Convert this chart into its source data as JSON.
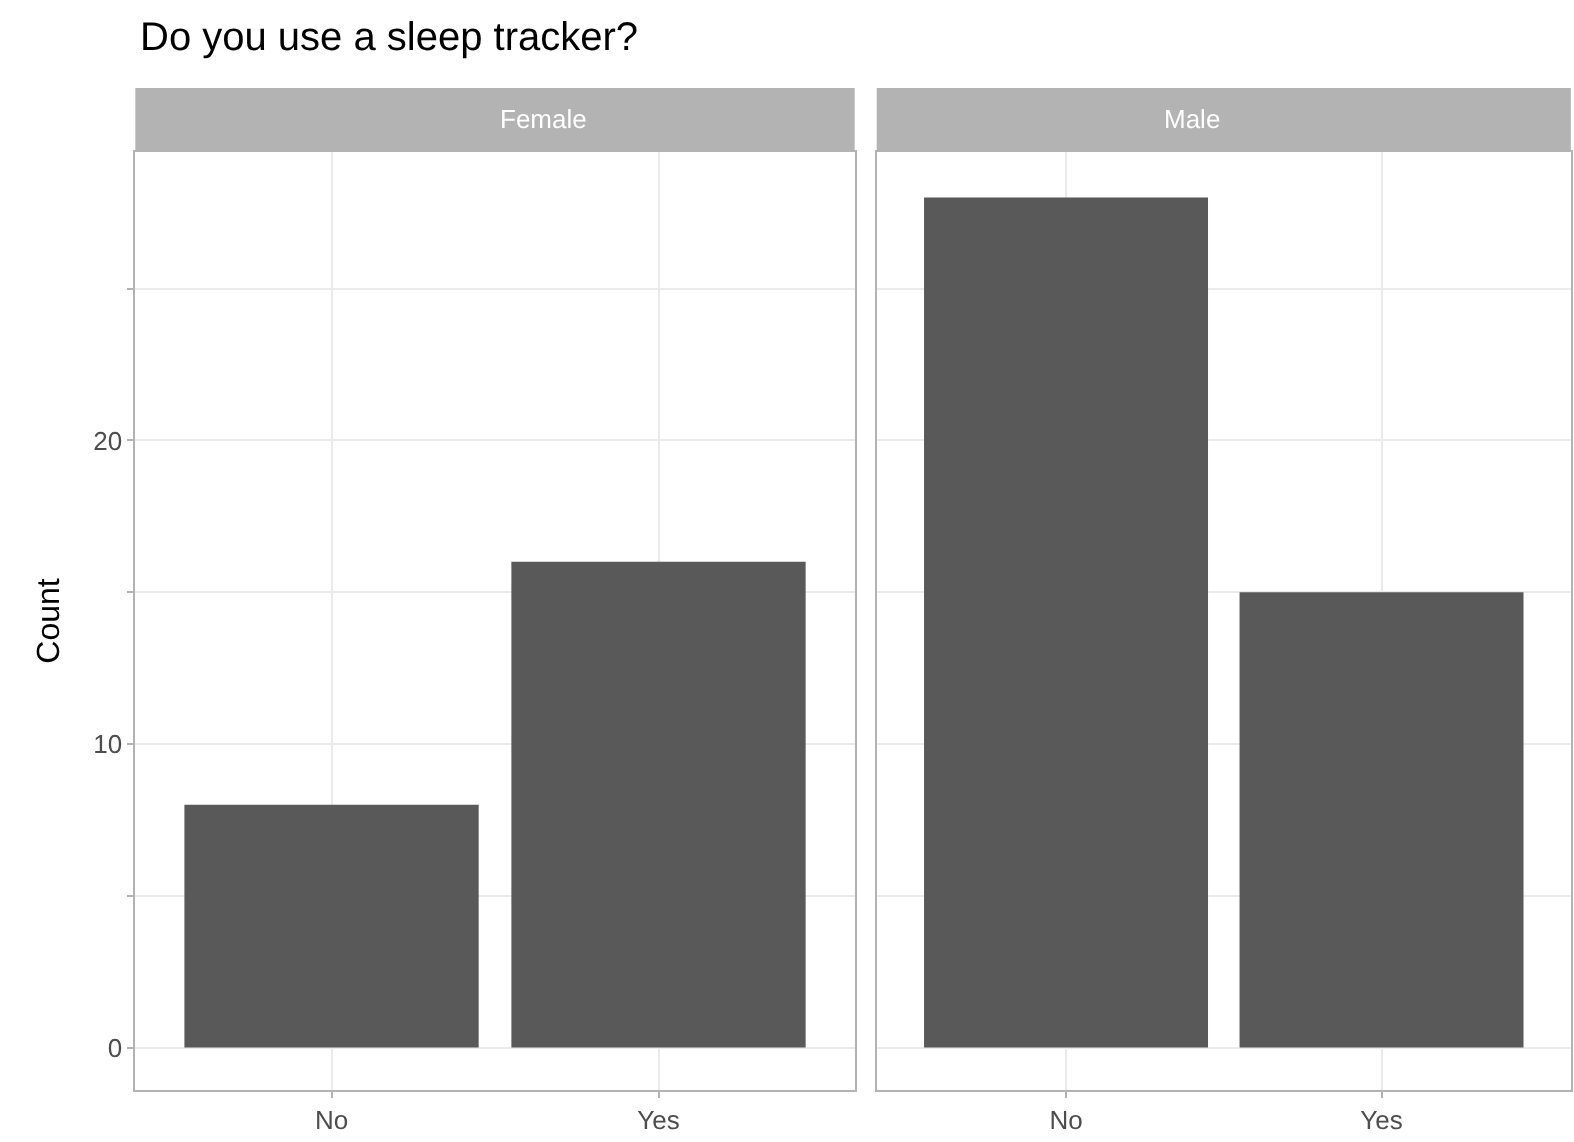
{
  "chart_data": [
    {
      "type": "bar",
      "title": "Do you use a sleep tracker?",
      "subtitle": "Female",
      "ylabel": "Count",
      "categories": [
        "No",
        "Yes"
      ],
      "series": [
        {
          "color": "#595959",
          "values": [
            8,
            16
          ]
        }
      ],
      "ylim": [
        -1.4,
        29.5
      ],
      "yticks": [
        0,
        {
          "value": 5,
          "label": null
        },
        10,
        {
          "value": 15,
          "label": null
        },
        20,
        {
          "value": 25,
          "label": null
        }
      ],
      "grid": true
    },
    {
      "type": "bar",
      "subtitle": "Male",
      "categories": [
        "No",
        "Yes"
      ],
      "series": [
        {
          "color": "#595959",
          "values": [
            28,
            15
          ]
        }
      ],
      "ylim": [
        -1.4,
        29.5
      ],
      "yticks": [
        0,
        {
          "value": 5,
          "label": null
        },
        10,
        {
          "value": 15,
          "label": null
        },
        20,
        {
          "value": 25,
          "label": null
        }
      ],
      "grid": true,
      "tick_labels": "x"
    }
  ]
}
